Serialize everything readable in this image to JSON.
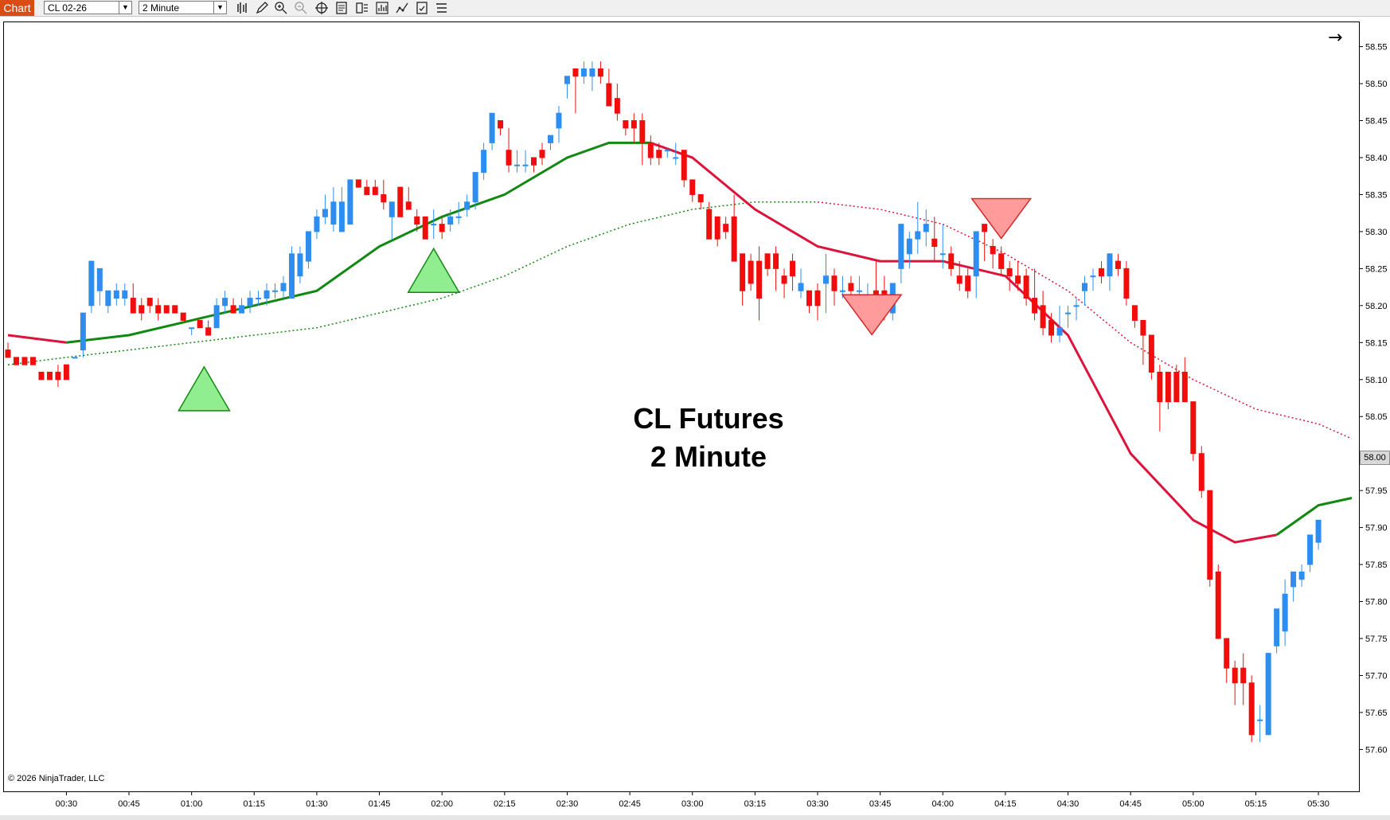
{
  "toolbar": {
    "tab_label": "Chart",
    "instrument": "CL 02-26",
    "interval": "2 Minute",
    "tools": [
      "bar-type-icon",
      "draw-pencil-icon",
      "zoom-in-icon",
      "zoom-out-icon",
      "crosshair-icon",
      "properties-icon",
      "data-box-icon",
      "indicators-icon",
      "strategies-icon",
      "templates-icon",
      "menu-icon"
    ]
  },
  "chart": {
    "title_line1": "CL Futures",
    "title_line2": "2 Minute",
    "copyright": "© 2026 NinjaTrader, LLC",
    "current_price": "58.00",
    "nav_arrow": "→",
    "colors": {
      "up_candle": "#2e8ef0",
      "down_candle": "#f20d0d",
      "ma_fast_up": "#118811",
      "ma_fast_down": "#dc143c",
      "buy_signal": "#90ee90",
      "sell_signal": "#ff9b9b"
    }
  },
  "chart_data": {
    "type": "candlestick",
    "title": "",
    "xlabel": "",
    "ylabel": "",
    "x_ticks": [
      "00:30",
      "00:45",
      "01:00",
      "01:15",
      "01:30",
      "01:45",
      "02:00",
      "02:15",
      "02:30",
      "02:45",
      "03:00",
      "03:15",
      "03:30",
      "03:45",
      "04:00",
      "04:15",
      "04:30",
      "04:45",
      "05:00",
      "05:15",
      "05:30"
    ],
    "y_ticks": [
      "57.60",
      "57.65",
      "57.70",
      "57.75",
      "57.80",
      "57.85",
      "57.90",
      "57.95",
      "58.00",
      "58.05",
      "58.10",
      "58.15",
      "58.20",
      "58.25",
      "58.30",
      "58.35",
      "58.40",
      "58.45",
      "58.50",
      "58.55"
    ],
    "ylim": [
      57.58,
      58.57
    ],
    "time_range": [
      "00:16",
      "05:38"
    ],
    "candles": [
      [
        "00:16",
        58.14,
        58.15,
        58.13,
        58.13
      ],
      [
        "00:18",
        58.13,
        58.13,
        58.12,
        58.12
      ],
      [
        "00:20",
        58.13,
        58.13,
        58.12,
        58.12
      ],
      [
        "00:22",
        58.13,
        58.13,
        58.12,
        58.12
      ],
      [
        "00:24",
        58.11,
        58.11,
        58.1,
        58.1
      ],
      [
        "00:26",
        58.11,
        58.11,
        58.1,
        58.1
      ],
      [
        "00:28",
        58.11,
        58.12,
        58.09,
        58.1
      ],
      [
        "00:30",
        58.12,
        58.12,
        58.1,
        58.1
      ],
      [
        "00:32",
        58.13,
        58.13,
        58.13,
        58.13
      ],
      [
        "00:34",
        58.14,
        58.19,
        58.13,
        58.19
      ],
      [
        "00:36",
        58.2,
        58.26,
        58.19,
        58.26
      ],
      [
        "00:38",
        58.22,
        58.25,
        58.2,
        58.25
      ],
      [
        "00:40",
        58.2,
        58.22,
        58.19,
        58.22
      ],
      [
        "00:42",
        58.21,
        58.23,
        58.2,
        58.22
      ],
      [
        "00:44",
        58.21,
        58.23,
        58.2,
        58.22
      ],
      [
        "00:46",
        58.21,
        58.23,
        58.19,
        58.19
      ],
      [
        "00:48",
        58.2,
        58.21,
        58.18,
        58.19
      ],
      [
        "00:50",
        58.21,
        58.21,
        58.19,
        58.2
      ],
      [
        "00:52",
        58.2,
        58.21,
        58.18,
        58.19
      ],
      [
        "00:54",
        58.2,
        58.2,
        58.19,
        58.19
      ],
      [
        "00:56",
        58.2,
        58.2,
        58.19,
        58.19
      ],
      [
        "00:58",
        58.19,
        58.19,
        58.18,
        58.18
      ],
      [
        "01:00",
        58.17,
        58.17,
        58.16,
        58.17
      ],
      [
        "01:02",
        58.18,
        58.18,
        58.17,
        58.17
      ],
      [
        "01:04",
        58.17,
        58.18,
        58.16,
        58.16
      ],
      [
        "01:06",
        58.17,
        58.21,
        58.17,
        58.2
      ],
      [
        "01:08",
        58.2,
        58.22,
        58.19,
        58.21
      ],
      [
        "01:10",
        58.2,
        58.21,
        58.19,
        58.19
      ],
      [
        "01:12",
        58.19,
        58.21,
        58.19,
        58.2
      ],
      [
        "01:14",
        58.2,
        58.22,
        58.19,
        58.21
      ],
      [
        "01:16",
        58.21,
        58.22,
        58.2,
        58.21
      ],
      [
        "01:18",
        58.21,
        58.23,
        58.2,
        58.22
      ],
      [
        "01:20",
        58.22,
        58.23,
        58.21,
        58.22
      ],
      [
        "01:22",
        58.22,
        58.24,
        58.21,
        58.23
      ],
      [
        "01:24",
        58.21,
        58.28,
        58.21,
        58.27
      ],
      [
        "01:26",
        58.24,
        58.28,
        58.23,
        58.27
      ],
      [
        "01:28",
        58.26,
        58.3,
        58.25,
        58.3
      ],
      [
        "01:30",
        58.3,
        58.33,
        58.29,
        58.32
      ],
      [
        "01:32",
        58.32,
        58.35,
        58.31,
        58.33
      ],
      [
        "01:34",
        58.31,
        58.36,
        58.3,
        58.34
      ],
      [
        "01:36",
        58.3,
        58.36,
        58.3,
        58.34
      ],
      [
        "01:38",
        58.31,
        58.37,
        58.31,
        58.37
      ],
      [
        "01:40",
        58.37,
        58.37,
        58.36,
        58.36
      ],
      [
        "01:42",
        58.36,
        58.37,
        58.35,
        58.35
      ],
      [
        "01:44",
        58.36,
        58.37,
        58.35,
        58.35
      ],
      [
        "01:46",
        58.35,
        58.37,
        58.33,
        58.34
      ],
      [
        "01:48",
        58.32,
        58.34,
        58.29,
        58.34
      ],
      [
        "01:50",
        58.36,
        58.36,
        58.32,
        58.32
      ],
      [
        "01:52",
        58.34,
        58.36,
        58.33,
        58.33
      ],
      [
        "01:54",
        58.32,
        58.33,
        58.3,
        58.31
      ],
      [
        "01:56",
        58.32,
        58.32,
        58.29,
        58.29
      ],
      [
        "01:58",
        58.31,
        58.33,
        58.29,
        58.31
      ],
      [
        "02:00",
        58.31,
        58.32,
        58.29,
        58.3
      ],
      [
        "02:02",
        58.31,
        58.33,
        58.3,
        58.32
      ],
      [
        "02:04",
        58.32,
        58.34,
        58.31,
        58.32
      ],
      [
        "02:06",
        58.33,
        58.35,
        58.32,
        58.34
      ],
      [
        "02:08",
        58.34,
        58.38,
        58.33,
        58.38
      ],
      [
        "02:10",
        58.38,
        58.42,
        58.37,
        58.41
      ],
      [
        "02:12",
        58.42,
        58.46,
        58.41,
        58.46
      ],
      [
        "02:14",
        58.45,
        58.45,
        58.43,
        58.44
      ],
      [
        "02:16",
        58.41,
        58.44,
        58.38,
        58.39
      ],
      [
        "02:18",
        58.39,
        58.41,
        58.38,
        58.39
      ],
      [
        "02:20",
        58.39,
        58.41,
        58.38,
        58.39
      ],
      [
        "02:22",
        58.4,
        58.4,
        58.38,
        58.39
      ],
      [
        "02:24",
        58.41,
        58.42,
        58.39,
        58.4
      ],
      [
        "02:26",
        58.42,
        58.43,
        58.41,
        58.43
      ],
      [
        "02:28",
        58.44,
        58.47,
        58.42,
        58.46
      ],
      [
        "02:30",
        58.5,
        58.51,
        58.48,
        58.51
      ],
      [
        "02:32",
        58.52,
        58.52,
        58.46,
        58.51
      ],
      [
        "02:34",
        58.51,
        58.53,
        58.5,
        58.52
      ],
      [
        "02:36",
        58.51,
        58.53,
        58.49,
        58.52
      ],
      [
        "02:38",
        58.52,
        58.53,
        58.5,
        58.51
      ],
      [
        "02:40",
        58.5,
        58.52,
        58.47,
        58.47
      ],
      [
        "02:42",
        58.48,
        58.5,
        58.45,
        58.46
      ],
      [
        "02:44",
        58.45,
        58.45,
        58.43,
        58.44
      ],
      [
        "02:46",
        58.45,
        58.46,
        58.42,
        58.44
      ],
      [
        "02:48",
        58.45,
        58.46,
        58.39,
        58.42
      ],
      [
        "02:50",
        58.42,
        58.43,
        58.39,
        58.4
      ],
      [
        "02:52",
        58.41,
        58.42,
        58.39,
        58.4
      ],
      [
        "02:54",
        58.41,
        58.41,
        58.4,
        58.41
      ],
      [
        "02:56",
        58.4,
        58.42,
        58.39,
        58.4
      ],
      [
        "02:58",
        58.41,
        58.41,
        58.36,
        58.37
      ],
      [
        "03:00",
        58.37,
        58.37,
        58.34,
        58.35
      ],
      [
        "03:02",
        58.35,
        58.35,
        58.33,
        58.34
      ],
      [
        "03:04",
        58.33,
        58.34,
        58.29,
        58.29
      ],
      [
        "03:06",
        58.32,
        58.32,
        58.28,
        58.29
      ],
      [
        "03:08",
        58.31,
        58.32,
        58.29,
        58.3
      ],
      [
        "03:10",
        58.32,
        58.35,
        58.26,
        58.26
      ],
      [
        "03:12",
        58.27,
        58.27,
        58.2,
        58.22
      ],
      [
        "03:14",
        58.26,
        58.27,
        58.22,
        58.23
      ],
      [
        "03:16",
        58.26,
        58.28,
        58.18,
        58.21
      ],
      [
        "03:18",
        58.27,
        58.27,
        58.24,
        58.25
      ],
      [
        "03:20",
        58.27,
        58.28,
        58.22,
        58.25
      ],
      [
        "03:22",
        58.24,
        58.25,
        58.21,
        58.23
      ],
      [
        "03:24",
        58.26,
        58.27,
        58.22,
        58.24
      ],
      [
        "03:26",
        58.22,
        58.25,
        58.21,
        58.23
      ],
      [
        "03:28",
        58.22,
        58.22,
        58.19,
        58.2
      ],
      [
        "03:30",
        58.22,
        58.23,
        58.18,
        58.2
      ],
      [
        "03:32",
        58.23,
        58.27,
        58.19,
        58.24
      ],
      [
        "03:34",
        58.24,
        58.25,
        58.2,
        58.22
      ],
      [
        "03:36",
        58.22,
        58.24,
        58.21,
        58.22
      ],
      [
        "03:38",
        58.23,
        58.24,
        58.2,
        58.22
      ],
      [
        "03:40",
        58.22,
        58.24,
        58.21,
        58.22
      ],
      [
        "03:42",
        58.21,
        58.23,
        58.2,
        58.21
      ],
      [
        "03:44",
        58.22,
        58.26,
        58.19,
        58.2
      ],
      [
        "03:46",
        58.22,
        58.24,
        58.18,
        58.19
      ],
      [
        "03:48",
        58.19,
        58.23,
        58.18,
        58.23
      ],
      [
        "03:50",
        58.25,
        58.31,
        58.23,
        58.31
      ],
      [
        "03:52",
        58.27,
        58.3,
        58.25,
        58.29
      ],
      [
        "03:54",
        58.29,
        58.34,
        58.27,
        58.3
      ],
      [
        "03:56",
        58.3,
        58.33,
        58.28,
        58.31
      ],
      [
        "03:58",
        58.29,
        58.32,
        58.26,
        58.28
      ],
      [
        "04:00",
        58.27,
        58.31,
        58.25,
        58.27
      ],
      [
        "04:02",
        58.27,
        58.28,
        58.24,
        58.25
      ],
      [
        "04:04",
        58.24,
        58.26,
        58.22,
        58.23
      ],
      [
        "04:06",
        58.24,
        58.25,
        58.21,
        58.22
      ],
      [
        "04:08",
        58.24,
        58.3,
        58.21,
        58.3
      ],
      [
        "04:10",
        58.31,
        58.31,
        58.26,
        58.3
      ],
      [
        "04:12",
        58.28,
        58.29,
        58.25,
        58.27
      ],
      [
        "04:14",
        58.27,
        58.28,
        58.24,
        58.25
      ],
      [
        "04:16",
        58.25,
        58.26,
        58.22,
        58.24
      ],
      [
        "04:18",
        58.24,
        58.26,
        58.22,
        58.23
      ],
      [
        "04:20",
        58.24,
        58.25,
        58.2,
        58.21
      ],
      [
        "04:22",
        58.21,
        58.25,
        58.18,
        58.19
      ],
      [
        "04:24",
        58.2,
        58.22,
        58.16,
        58.17
      ],
      [
        "04:26",
        58.18,
        58.19,
        58.15,
        58.16
      ],
      [
        "04:28",
        58.16,
        58.2,
        58.15,
        58.17
      ],
      [
        "04:30",
        58.19,
        58.2,
        58.17,
        58.19
      ],
      [
        "04:32",
        58.2,
        58.21,
        58.18,
        58.2
      ],
      [
        "04:34",
        58.22,
        58.24,
        58.2,
        58.23
      ],
      [
        "04:36",
        58.24,
        58.25,
        58.22,
        58.24
      ],
      [
        "04:38",
        58.25,
        58.26,
        58.23,
        58.24
      ],
      [
        "04:40",
        58.24,
        58.27,
        58.22,
        58.27
      ],
      [
        "04:42",
        58.26,
        58.27,
        58.24,
        58.25
      ],
      [
        "04:44",
        58.25,
        58.26,
        58.2,
        58.21
      ],
      [
        "04:46",
        58.2,
        58.2,
        58.17,
        58.18
      ],
      [
        "04:48",
        58.18,
        58.18,
        58.12,
        58.16
      ],
      [
        "04:50",
        58.16,
        58.16,
        58.1,
        58.11
      ],
      [
        "04:52",
        58.11,
        58.12,
        58.03,
        58.07
      ],
      [
        "04:54",
        58.11,
        58.11,
        58.06,
        58.07
      ],
      [
        "04:56",
        58.11,
        58.12,
        58.07,
        58.07
      ],
      [
        "04:58",
        58.11,
        58.13,
        58.07,
        58.07
      ],
      [
        "05:00",
        58.07,
        58.07,
        57.99,
        58.0
      ],
      [
        "05:02",
        58.0,
        58.01,
        57.94,
        57.95
      ],
      [
        "05:04",
        57.95,
        57.95,
        57.82,
        57.83
      ],
      [
        "05:06",
        57.84,
        57.85,
        57.75,
        57.75
      ],
      [
        "05:08",
        57.75,
        57.75,
        57.69,
        57.71
      ],
      [
        "05:10",
        57.71,
        57.72,
        57.66,
        57.69
      ],
      [
        "05:12",
        57.71,
        57.73,
        57.66,
        57.69
      ],
      [
        "05:14",
        57.69,
        57.7,
        57.61,
        57.62
      ],
      [
        "05:16",
        57.64,
        57.66,
        57.61,
        57.64
      ],
      [
        "05:18",
        57.62,
        57.73,
        57.62,
        57.73
      ],
      [
        "05:20",
        57.74,
        57.79,
        57.73,
        57.79
      ],
      [
        "05:22",
        57.76,
        57.83,
        57.74,
        57.81
      ],
      [
        "05:24",
        57.82,
        57.84,
        57.8,
        57.84
      ],
      [
        "05:26",
        57.83,
        57.85,
        57.82,
        57.84
      ],
      [
        "05:28",
        57.85,
        57.89,
        57.84,
        57.89
      ],
      [
        "05:30",
        57.88,
        57.91,
        57.87,
        57.91
      ]
    ],
    "ma_fast": [
      [
        "00:16",
        58.16
      ],
      [
        "00:30",
        58.15
      ],
      [
        "00:45",
        58.16
      ],
      [
        "01:00",
        58.18
      ],
      [
        "01:15",
        58.2
      ],
      [
        "01:30",
        58.22
      ],
      [
        "01:45",
        58.28
      ],
      [
        "02:00",
        58.32
      ],
      [
        "02:15",
        58.35
      ],
      [
        "02:30",
        58.4
      ],
      [
        "02:40",
        58.42
      ],
      [
        "02:50",
        58.42
      ],
      [
        "03:00",
        58.4
      ],
      [
        "03:15",
        58.33
      ],
      [
        "03:30",
        58.28
      ],
      [
        "03:45",
        58.26
      ],
      [
        "04:00",
        58.26
      ],
      [
        "04:15",
        58.24
      ],
      [
        "04:30",
        58.16
      ],
      [
        "04:45",
        58.0
      ],
      [
        "05:00",
        57.91
      ],
      [
        "05:10",
        57.88
      ],
      [
        "05:20",
        57.89
      ],
      [
        "05:30",
        57.93
      ],
      [
        "05:38",
        57.94
      ]
    ],
    "ma_slow": [
      [
        "00:16",
        58.12
      ],
      [
        "00:30",
        58.13
      ],
      [
        "00:45",
        58.14
      ],
      [
        "01:00",
        58.15
      ],
      [
        "01:15",
        58.16
      ],
      [
        "01:30",
        58.17
      ],
      [
        "01:45",
        58.19
      ],
      [
        "02:00",
        58.21
      ],
      [
        "02:15",
        58.24
      ],
      [
        "02:30",
        58.28
      ],
      [
        "02:45",
        58.31
      ],
      [
        "03:00",
        58.33
      ],
      [
        "03:15",
        58.34
      ],
      [
        "03:30",
        58.34
      ],
      [
        "03:45",
        58.33
      ],
      [
        "04:00",
        58.31
      ],
      [
        "04:15",
        58.27
      ],
      [
        "04:30",
        58.22
      ],
      [
        "04:45",
        58.15
      ],
      [
        "05:00",
        58.1
      ],
      [
        "05:15",
        58.06
      ],
      [
        "05:30",
        58.04
      ],
      [
        "05:38",
        58.02
      ]
    ],
    "buy_signals": [
      "01:03",
      "01:58"
    ],
    "sell_signals": [
      "03:43",
      "04:14"
    ]
  }
}
